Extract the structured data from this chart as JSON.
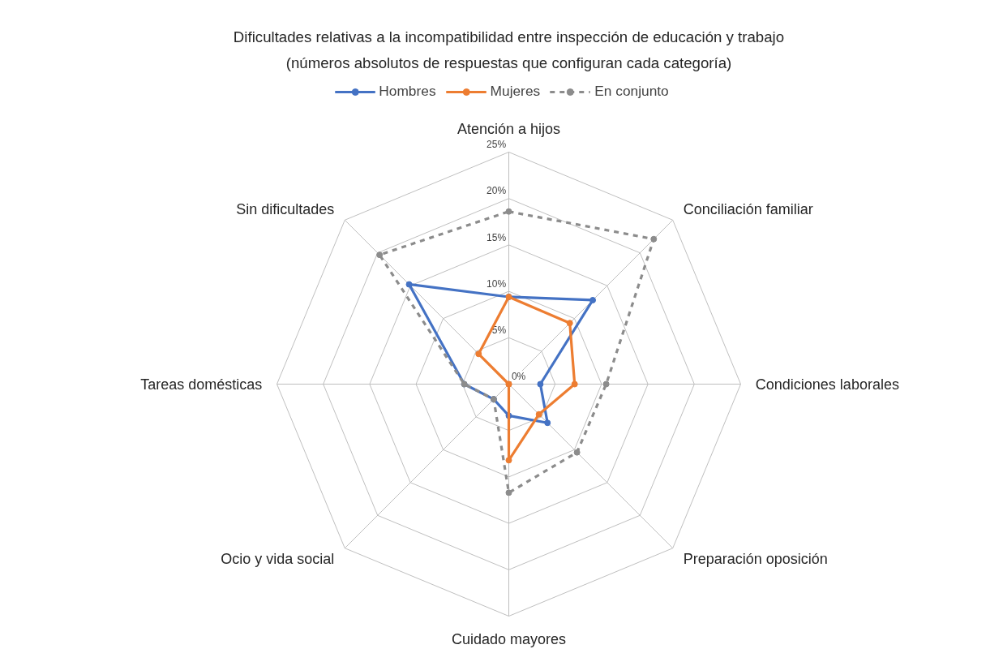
{
  "chart_data": {
    "type": "radar",
    "title": "Dificultades relativas a la incompatibilidad entre inspección de educación y trabajo",
    "subtitle": "(números absolutos de respuestas que configuran cada categoría)",
    "categories": [
      "Atención a hijos",
      "Conciliación familiar",
      "Condiciones laborales",
      "Preparación oposición",
      "Cuidado mayores",
      "Ocio y vida social",
      "Tareas domésticas",
      "Sin dificultades"
    ],
    "series": [
      {
        "name": "Hombres",
        "color": "#4472c4",
        "values": [
          9.4,
          12.8,
          3.4,
          5.9,
          3.4,
          2.3,
          4.8,
          15.2
        ],
        "line_style": "solid"
      },
      {
        "name": "Mujeres",
        "color": "#ed7d31",
        "values": [
          9.4,
          9.3,
          7.1,
          4.6,
          8.2,
          0,
          0,
          4.6
        ],
        "line_style": "solid"
      },
      {
        "name": "En conjunto",
        "color": "#8c8c8c",
        "values": [
          18.6,
          22.1,
          10.5,
          10.4,
          11.7,
          2.3,
          4.8,
          19.7
        ],
        "line_style": "dashed"
      }
    ],
    "ylim": [
      0,
      25
    ],
    "yticks": [
      {
        "value": 0,
        "label": "0%"
      },
      {
        "value": 5,
        "label": "5%"
      },
      {
        "value": 10,
        "label": "10%"
      },
      {
        "value": 15,
        "label": "15%"
      },
      {
        "value": 20,
        "label": "20%"
      },
      {
        "value": 25,
        "label": "25%"
      }
    ],
    "grid": true,
    "legend": "top",
    "marker": "circle"
  }
}
